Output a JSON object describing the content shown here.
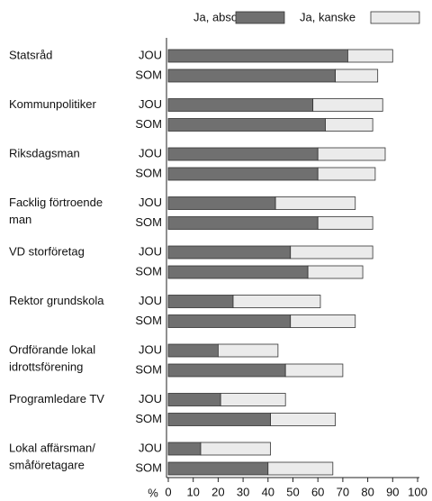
{
  "chart_data": {
    "type": "stacked-bar-horizontal",
    "x_label": "%",
    "groups": [
      [
        "Statsråd"
      ],
      [
        "Kommunpolitiker"
      ],
      [
        "Riksdagsman"
      ],
      [
        "Facklig förtroende",
        "man"
      ],
      [
        "VD storföretag"
      ],
      [
        "Rektor grundskola"
      ],
      [
        "Ordförande lokal",
        "idrottsförening"
      ],
      [
        "Programledare TV"
      ],
      [
        "Lokal affärsman/",
        "småföretagare"
      ]
    ],
    "categories": [
      "JOU",
      "SOM",
      "JOU",
      "SOM",
      "JOU",
      "SOM",
      "JOU",
      "SOM",
      "JOU",
      "SOM",
      "JOU",
      "SOM",
      "JOU",
      "SOM",
      "JOU",
      "SOM",
      "JOU",
      "SOM"
    ],
    "series": [
      {
        "name": "Ja, absolut",
        "color": "#707070",
        "values": [
          72,
          67,
          58,
          63,
          60,
          60,
          43,
          60,
          49,
          56,
          26,
          49,
          20,
          47,
          21,
          41,
          13,
          40
        ]
      },
      {
        "name": "Ja, kanske",
        "color": "#ebebeb",
        "values": [
          18,
          17,
          28,
          19,
          27,
          23,
          32,
          22,
          33,
          22,
          35,
          26,
          24,
          23,
          26,
          26,
          28,
          26
        ]
      }
    ],
    "xlim": [
      0,
      100
    ],
    "xticks": [
      0,
      10,
      20,
      30,
      40,
      50,
      60,
      70,
      80,
      90,
      100
    ],
    "legend": "top"
  }
}
